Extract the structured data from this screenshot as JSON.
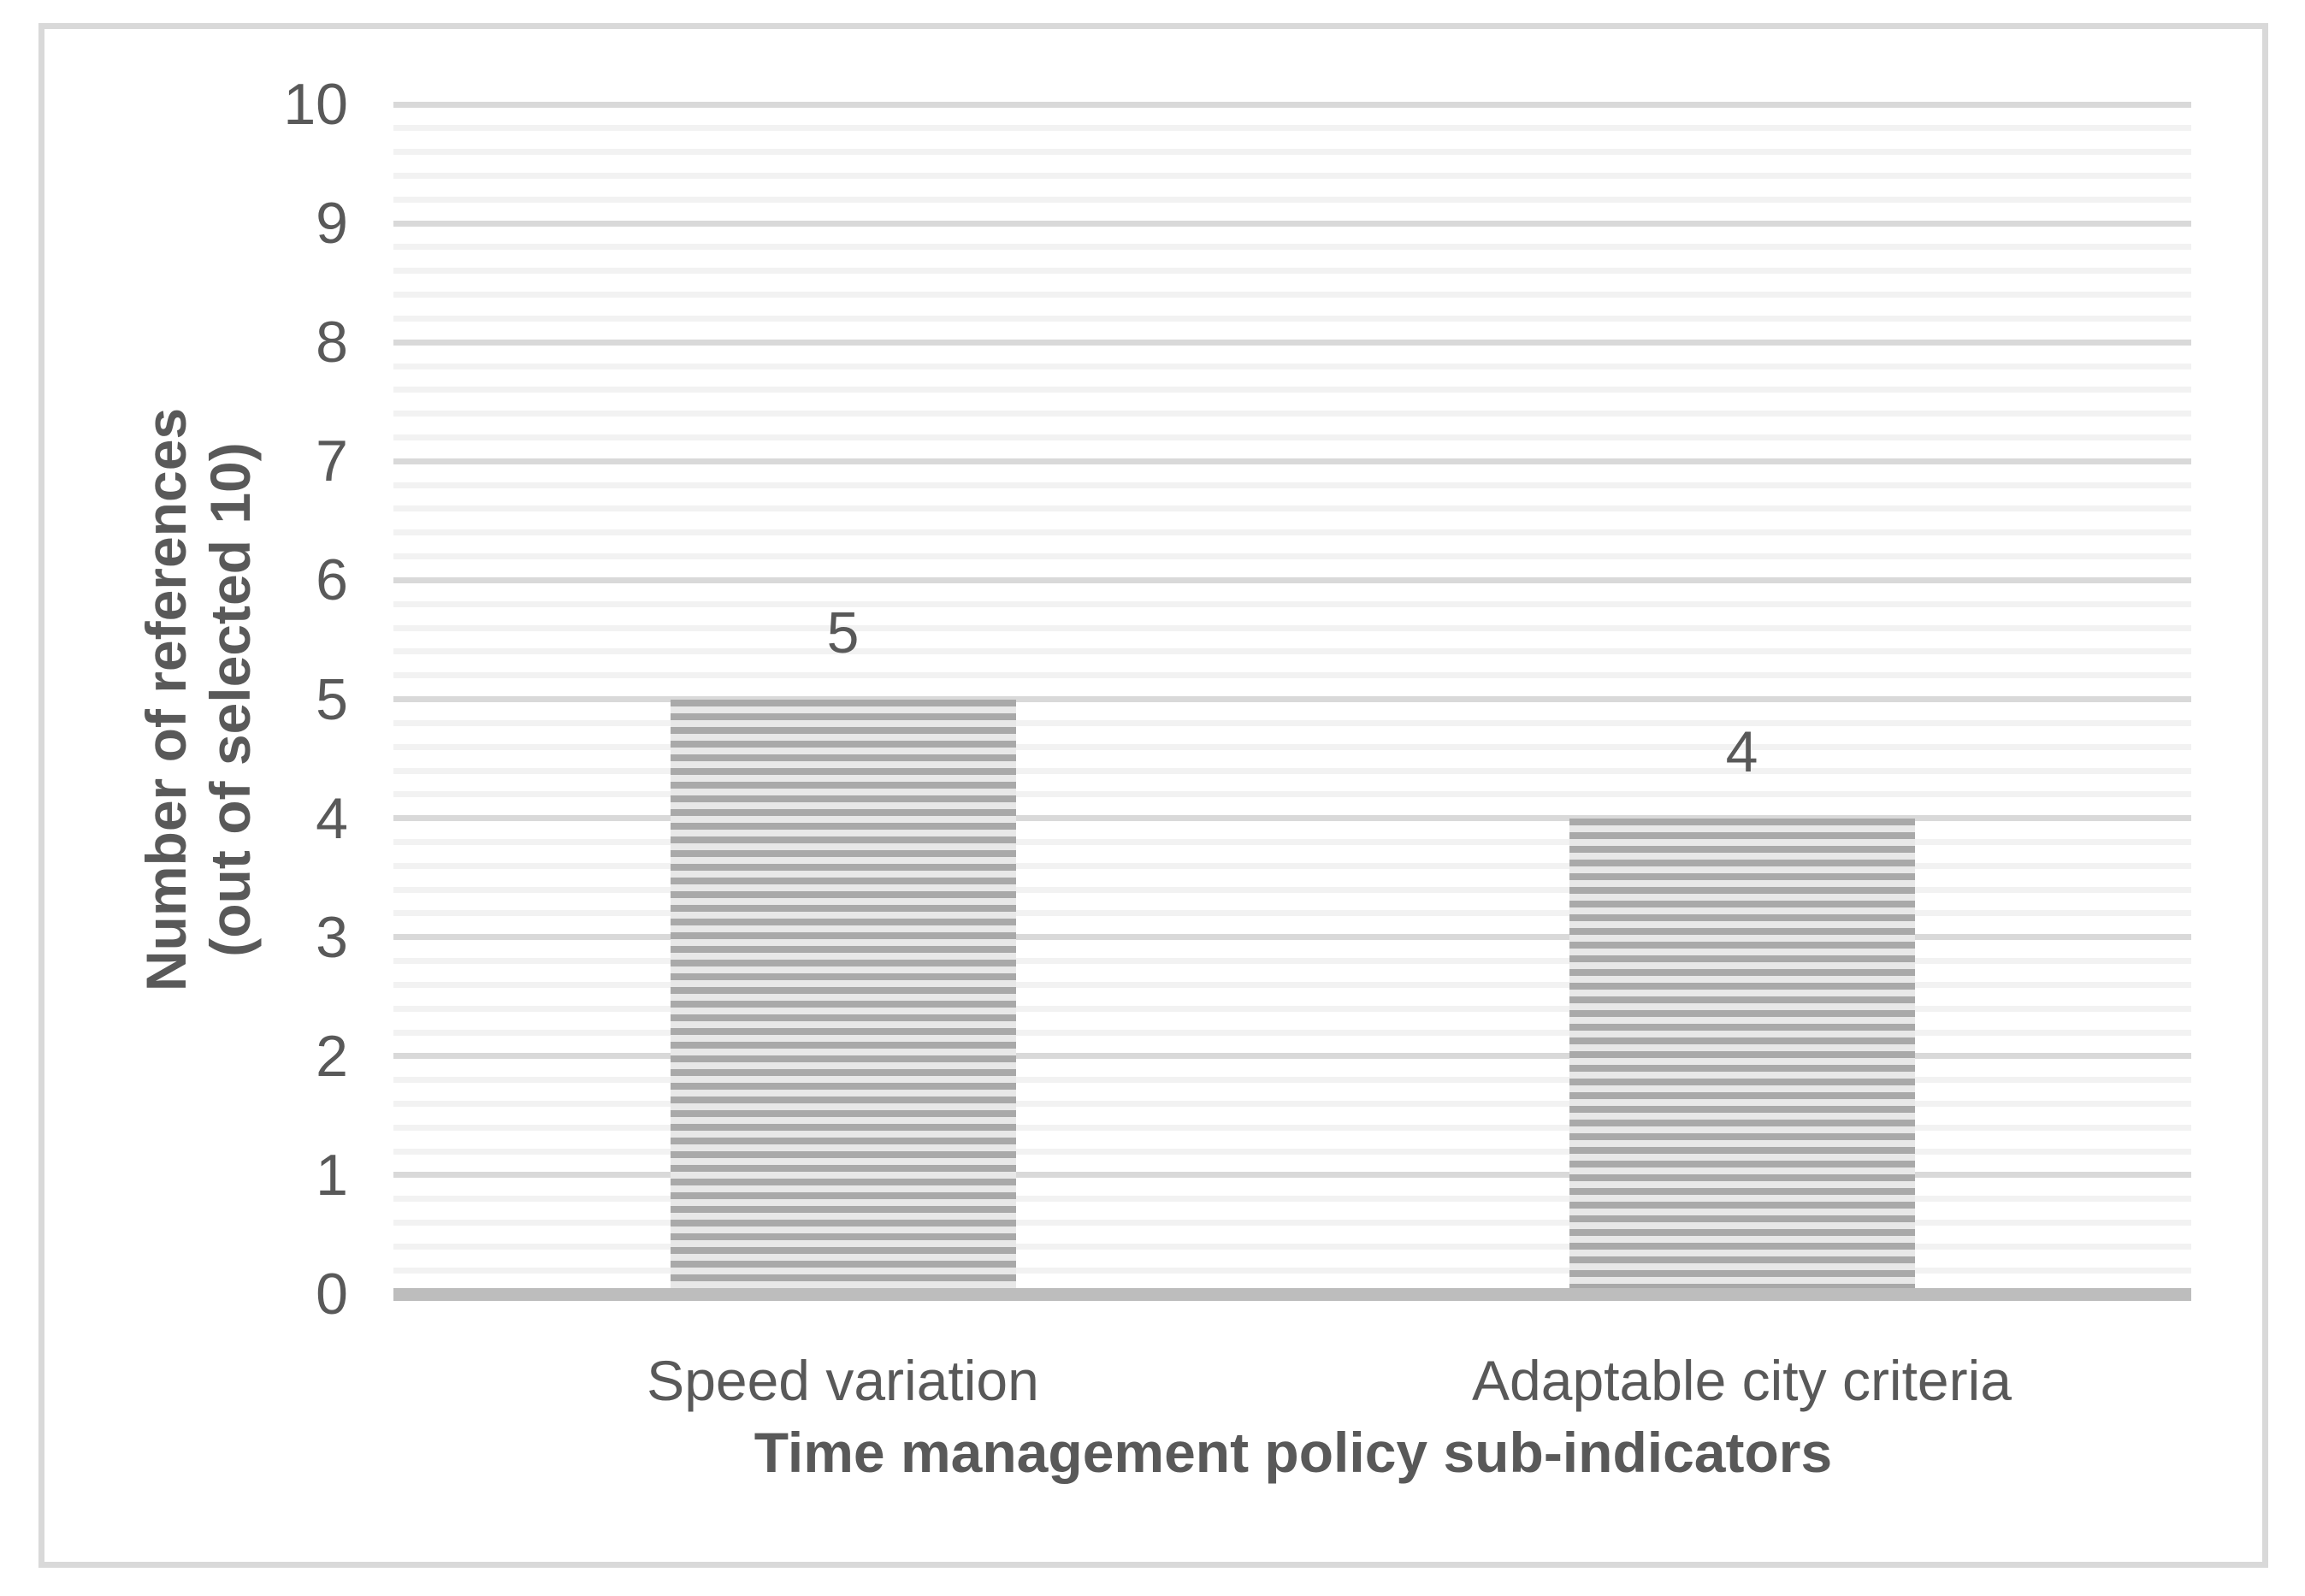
{
  "chart_data": {
    "type": "bar",
    "categories": [
      "Speed variation",
      "Adaptable city criteria"
    ],
    "values": [
      5,
      4
    ],
    "data_labels": [
      "5",
      "4"
    ],
    "xlabel": "Time management policy sub-indicators",
    "ylabel_line1": "Number of references",
    "ylabel_line2": "(out of selected 10)",
    "ylim": [
      0,
      10
    ],
    "ytick_step": 1,
    "yminor_step": 0.2,
    "ytick_labels": [
      "0",
      "1",
      "2",
      "3",
      "4",
      "5",
      "6",
      "7",
      "8",
      "9",
      "10"
    ],
    "grid": "horizontal major + minor, on",
    "legend": "none",
    "bar_fill_pattern": "horizontal stripes",
    "colors": {
      "text": "#595959",
      "major_grid": "#d9d9d9",
      "minor_grid": "#f2f2f2",
      "axis_line": "#bdbdbd",
      "figure_border": "#d9d9d9",
      "bar_stripe_dark": "#a9a9a9",
      "bar_stripe_light": "#e8e8e8",
      "background": "#ffffff"
    }
  }
}
